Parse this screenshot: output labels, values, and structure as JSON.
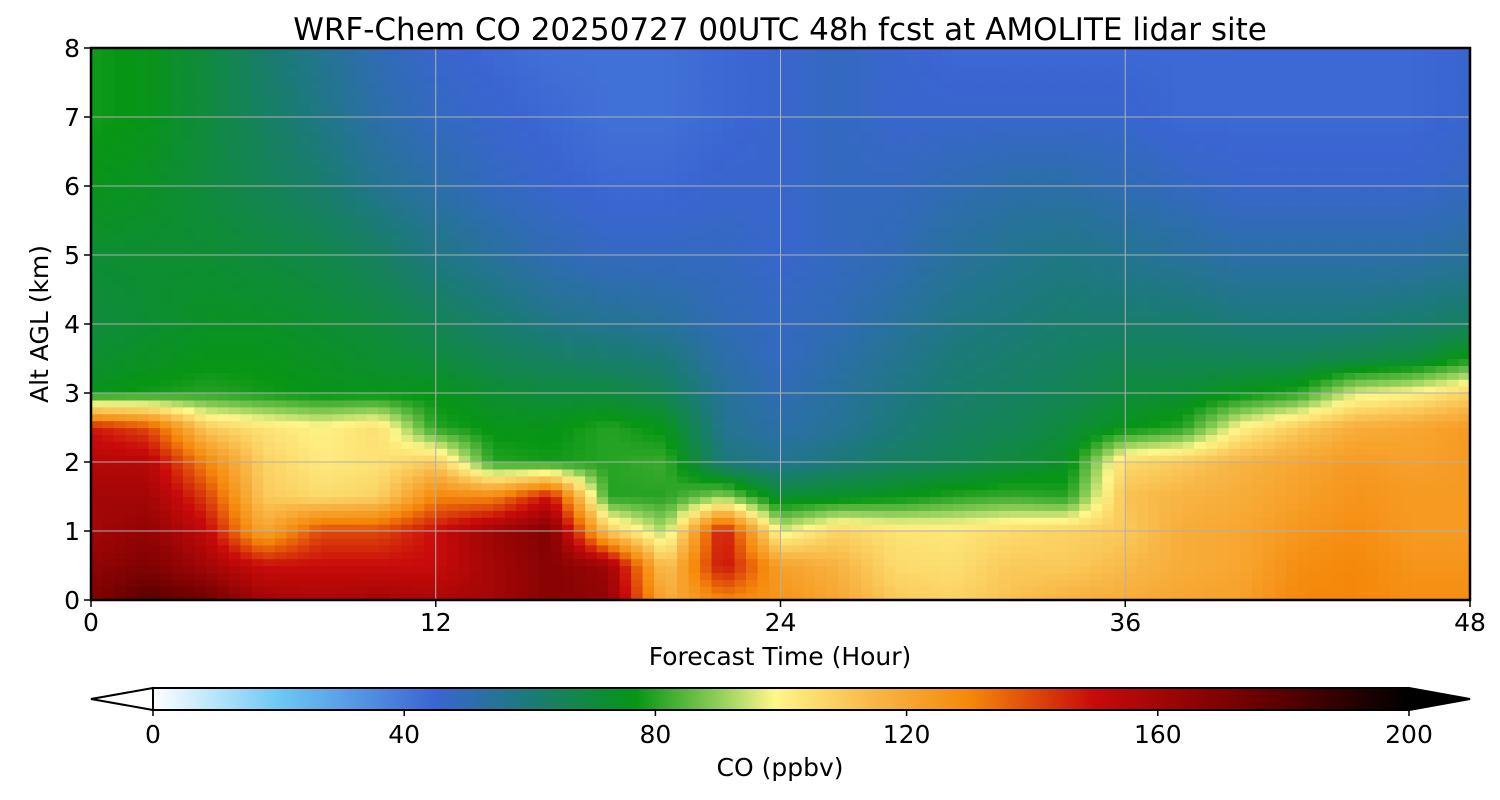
{
  "chart_data": {
    "type": "heatmap",
    "title": "WRF-Chem CO  20250727 00UTC 48h fcst at AMOLITE lidar site",
    "xlabel": "Forecast Time (Hour)",
    "ylabel": "Alt AGL (km)",
    "xlim": [
      0,
      48
    ],
    "ylim": [
      0,
      8
    ],
    "xticks": [
      "0",
      "12",
      "24",
      "36",
      "48"
    ],
    "yticks": [
      "0",
      "1",
      "2",
      "3",
      "4",
      "5",
      "6",
      "7",
      "8"
    ],
    "grid": true,
    "colorbar": {
      "label": "CO  (ppbv)",
      "range": [
        0,
        200
      ],
      "ticks": [
        "0",
        "40",
        "80",
        "120",
        "160",
        "200"
      ],
      "extend": "both",
      "color_stops": [
        {
          "value": 0,
          "color": "#ffffff"
        },
        {
          "value": 20,
          "color": "#6ec8f5"
        },
        {
          "value": 45,
          "color": "#3a65d2"
        },
        {
          "value": 60,
          "color": "#1b7a78"
        },
        {
          "value": 77,
          "color": "#079614"
        },
        {
          "value": 90,
          "color": "#8fce5a"
        },
        {
          "value": 99,
          "color": "#fff68a"
        },
        {
          "value": 115,
          "color": "#f8b645"
        },
        {
          "value": 130,
          "color": "#f5880a"
        },
        {
          "value": 150,
          "color": "#c80a0a"
        },
        {
          "value": 175,
          "color": "#6e0000"
        },
        {
          "value": 200,
          "color": "#000000"
        }
      ]
    },
    "altitude_km": [
      0,
      0.5,
      1,
      1.5,
      2,
      2.5,
      3,
      3.5,
      4,
      5,
      6,
      7,
      8
    ],
    "forecast_hour": [
      0,
      2,
      4,
      6,
      8,
      10,
      12,
      14,
      16,
      18,
      20,
      22,
      24,
      26,
      28,
      30,
      32,
      34,
      36,
      38,
      40,
      42,
      44,
      46,
      48
    ],
    "co_ppbv": [
      [
        170,
        180,
        175,
        160,
        158,
        160,
        158,
        160,
        168,
        165,
        118,
        130,
        126,
        120,
        110,
        108,
        112,
        116,
        118,
        120,
        122,
        130,
        130,
        128,
        128
      ],
      [
        165,
        170,
        160,
        150,
        150,
        150,
        150,
        160,
        168,
        162,
        110,
        150,
        122,
        116,
        106,
        105,
        110,
        110,
        114,
        118,
        120,
        128,
        130,
        126,
        126
      ],
      [
        160,
        165,
        152,
        120,
        140,
        140,
        150,
        162,
        170,
        110,
        92,
        150,
        96,
        108,
        104,
        103,
        106,
        108,
        110,
        118,
        120,
        125,
        128,
        124,
        124
      ],
      [
        160,
        160,
        142,
        110,
        106,
        108,
        130,
        130,
        150,
        80,
        80,
        90,
        72,
        74,
        76,
        80,
        82,
        80,
        112,
        116,
        118,
        122,
        126,
        124,
        124
      ],
      [
        155,
        155,
        130,
        108,
        102,
        104,
        110,
        80,
        78,
        80,
        82,
        60,
        56,
        60,
        64,
        66,
        70,
        74,
        106,
        110,
        116,
        120,
        124,
        122,
        124
      ],
      [
        148,
        140,
        110,
        104,
        100,
        105,
        80,
        76,
        76,
        80,
        76,
        56,
        52,
        55,
        60,
        64,
        66,
        70,
        76,
        80,
        100,
        110,
        118,
        120,
        124
      ],
      [
        76,
        78,
        80,
        78,
        76,
        76,
        76,
        72,
        70,
        70,
        66,
        55,
        50,
        54,
        58,
        62,
        64,
        66,
        70,
        72,
        76,
        80,
        96,
        100,
        108
      ],
      [
        72,
        74,
        76,
        76,
        74,
        72,
        70,
        66,
        64,
        62,
        60,
        52,
        48,
        52,
        56,
        60,
        62,
        64,
        66,
        66,
        66,
        66,
        68,
        70,
        78
      ],
      [
        70,
        72,
        74,
        74,
        72,
        70,
        66,
        62,
        58,
        56,
        54,
        50,
        48,
        50,
        54,
        58,
        60,
        62,
        62,
        62,
        60,
        60,
        60,
        62,
        64
      ],
      [
        72,
        72,
        72,
        70,
        68,
        64,
        58,
        54,
        50,
        48,
        48,
        48,
        46,
        48,
        50,
        54,
        56,
        58,
        56,
        54,
        52,
        52,
        52,
        52,
        54
      ],
      [
        76,
        74,
        70,
        66,
        62,
        56,
        52,
        48,
        46,
        44,
        44,
        46,
        46,
        48,
        48,
        50,
        52,
        52,
        50,
        48,
        46,
        46,
        46,
        46,
        48
      ],
      [
        78,
        76,
        70,
        64,
        58,
        52,
        48,
        46,
        44,
        42,
        42,
        44,
        46,
        48,
        46,
        46,
        46,
        46,
        46,
        44,
        44,
        44,
        44,
        44,
        46
      ],
      [
        78,
        76,
        70,
        62,
        56,
        50,
        46,
        44,
        42,
        42,
        42,
        44,
        46,
        48,
        46,
        44,
        44,
        44,
        44,
        44,
        44,
        44,
        44,
        44,
        46
      ]
    ]
  }
}
